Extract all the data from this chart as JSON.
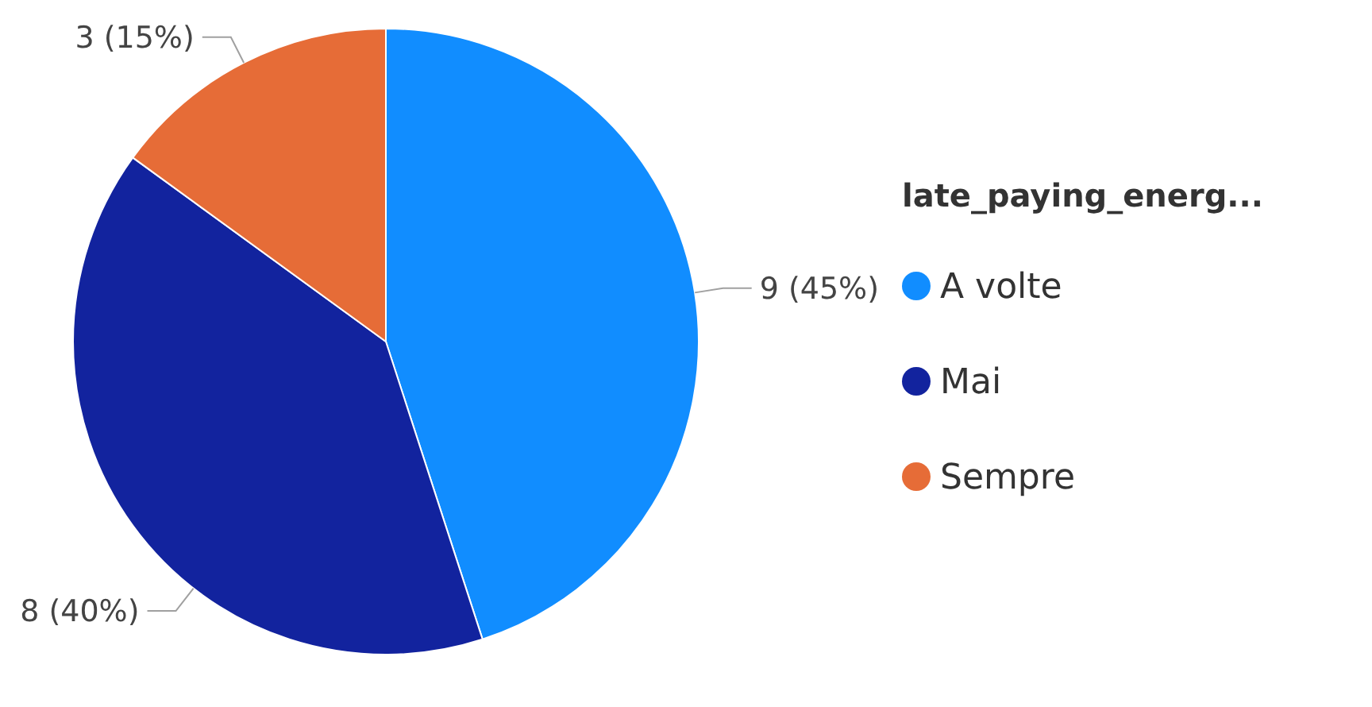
{
  "chart_data": {
    "type": "pie",
    "categories": [
      "A volte",
      "Mai",
      "Sempre"
    ],
    "values": [
      9,
      8,
      3
    ],
    "colors": [
      "#118dff",
      "#12239e",
      "#e66c37"
    ],
    "value_labels": [
      "9 (45%)",
      "8 (40%)",
      "3 (15%)"
    ],
    "legend_title": "late_paying_energ...",
    "legend": "right"
  }
}
